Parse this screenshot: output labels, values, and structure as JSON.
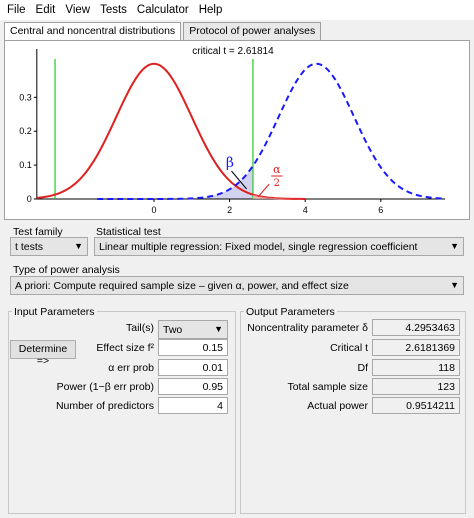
{
  "menu": [
    "File",
    "Edit",
    "View",
    "Tests",
    "Calculator",
    "Help"
  ],
  "tabs": [
    "Central and noncentral distributions",
    "Protocol of power analyses"
  ],
  "plot": {
    "critical_label": "critical t = 2.61814",
    "critical_t": 2.61814,
    "noncentrality": 4.2953463,
    "y_ticks": [
      "0.3",
      "0.2",
      "0.1",
      "0"
    ],
    "x_ticks": [
      "0",
      "2",
      "4",
      "6"
    ],
    "beta_symbol": "β",
    "alpha_num": "α",
    "alpha_den": "2",
    "colors": {
      "central": "#e02020",
      "noncentral": "#1a1aff",
      "critical": "#22cc22",
      "beta_fill": "#c8c8ee"
    }
  },
  "test_family": {
    "label": "Test family",
    "value": "t tests"
  },
  "statistical_test": {
    "label": "Statistical test",
    "value": "Linear multiple regression: Fixed model, single regression coefficient"
  },
  "power_analysis": {
    "label": "Type of power analysis",
    "value": "A priori: Compute required sample size – given α, power, and effect size"
  },
  "input": {
    "title": "Input Parameters",
    "tails_label": "Tail(s)",
    "tails_value": "Two",
    "determine_label": "Determine =>",
    "effect_label": "Effect size f²",
    "effect_value": "0.15",
    "alpha_label": "α err prob",
    "alpha_value": "0.01",
    "power_label": "Power (1−β err prob)",
    "power_value": "0.95",
    "predictors_label": "Number of predictors",
    "predictors_value": "4"
  },
  "output": {
    "title": "Output Parameters",
    "ncp_label": "Noncentrality parameter δ",
    "ncp_value": "4.2953463",
    "crit_label": "Critical t",
    "crit_value": "2.6181369",
    "df_label": "Df",
    "df_value": "118",
    "n_label": "Total sample size",
    "n_value": "123",
    "power_label": "Actual power",
    "power_value": "0.9514211"
  }
}
